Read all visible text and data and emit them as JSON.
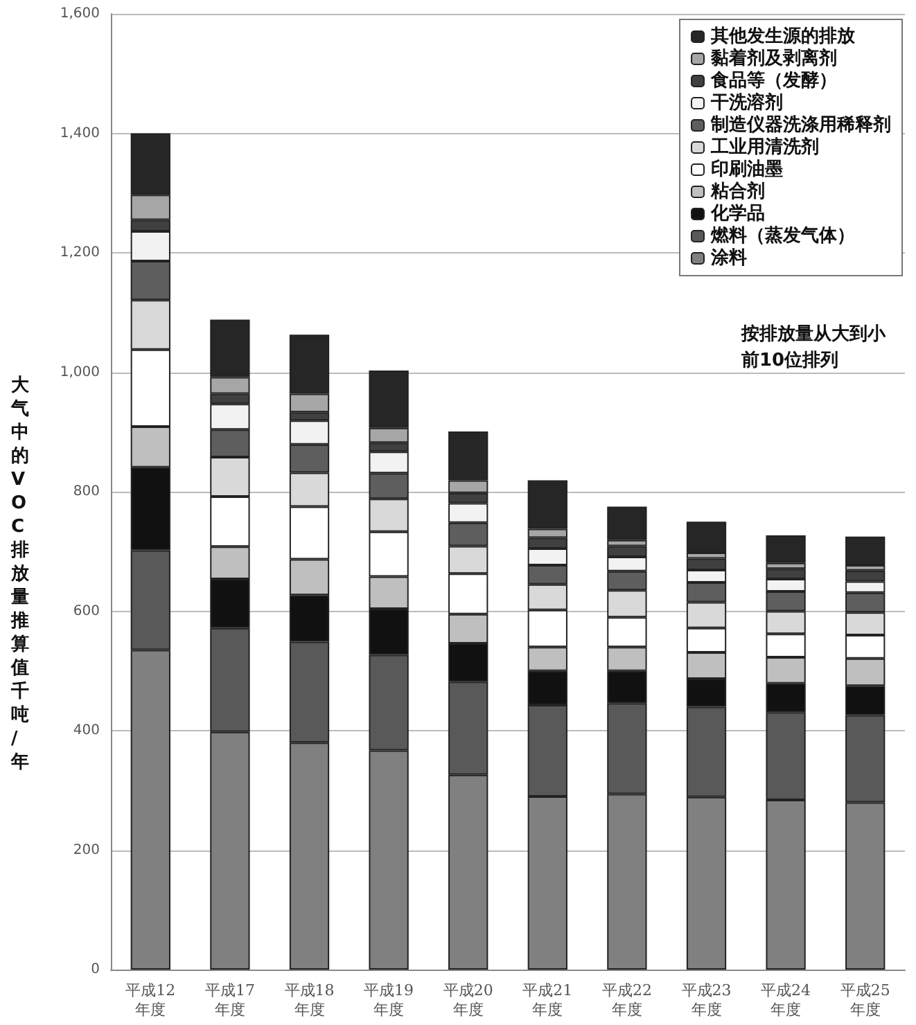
{
  "chart_data": {
    "type": "bar",
    "stacked": true,
    "categories": [
      "平成12年度",
      "平成17年度",
      "平成18年度",
      "平成19年度",
      "平成20年度",
      "平成21年度",
      "平成22年度",
      "平成23年度",
      "平成24年度",
      "平成25年度"
    ],
    "ylabel": "大气中的VOC排放量推算值千吨/年",
    "annotations": [
      "按排放量从大到小前10位排列"
    ],
    "ylim": [
      0,
      1600
    ],
    "yticks": [
      0,
      200,
      400,
      600,
      800,
      {
        "value": 1000,
        "label": "1,000"
      },
      {
        "value": 1200,
        "label": "1,200"
      },
      {
        "value": 1400,
        "label": "1,400"
      },
      {
        "value": 1600,
        "label": "1,600"
      }
    ],
    "grid": "y",
    "legend": "top right",
    "series": [
      {
        "name": "涂料",
        "color": "#808080",
        "values": [
          535,
          398,
          380,
          367,
          326,
          290,
          294,
          289,
          284,
          280
        ]
      },
      {
        "name": "燃料（蒸发气体）",
        "color": "#595959",
        "values": [
          167,
          174,
          169,
          160,
          156,
          153,
          152,
          151,
          147,
          146
        ]
      },
      {
        "name": "化学品",
        "color": "#111111",
        "values": [
          139,
          82,
          78,
          77,
          64,
          57,
          54,
          47,
          48,
          49
        ]
      },
      {
        "name": "粘合剂",
        "color": "#bfbfbf",
        "values": [
          68,
          54,
          60,
          54,
          49,
          40,
          40,
          44,
          44,
          46
        ]
      },
      {
        "name": "印刷油墨",
        "color": "#ffffff",
        "values": [
          129,
          84,
          88,
          75,
          68,
          62,
          50,
          41,
          39,
          39
        ]
      },
      {
        "name": "工业用清洗剂",
        "color": "#d9d9d9",
        "values": [
          83,
          66,
          57,
          55,
          46,
          43,
          45,
          43,
          38,
          38
        ]
      },
      {
        "name": "制造仪器洗涤用稀释剂",
        "color": "#5e5e5e",
        "values": [
          65,
          46,
          47,
          43,
          39,
          32,
          32,
          33,
          33,
          33
        ]
      },
      {
        "name": "干洗溶剂",
        "color": "#f2f2f2",
        "values": [
          50,
          43,
          40,
          36,
          33,
          28,
          24,
          21,
          21,
          19
        ]
      },
      {
        "name": "食品等（发酵）",
        "color": "#404040",
        "values": [
          19,
          17,
          14,
          15,
          17,
          18,
          18,
          19,
          17,
          18
        ]
      },
      {
        "name": "黏着剂及剥离剂",
        "color": "#a6a6a6",
        "values": [
          42,
          28,
          31,
          25,
          21,
          15,
          10,
          10,
          10,
          9
        ]
      },
      {
        "name": "其他发生源的排放",
        "color": "#262626",
        "values": [
          103,
          96,
          99,
          96,
          82,
          81,
          56,
          52,
          46,
          48
        ]
      }
    ]
  }
}
